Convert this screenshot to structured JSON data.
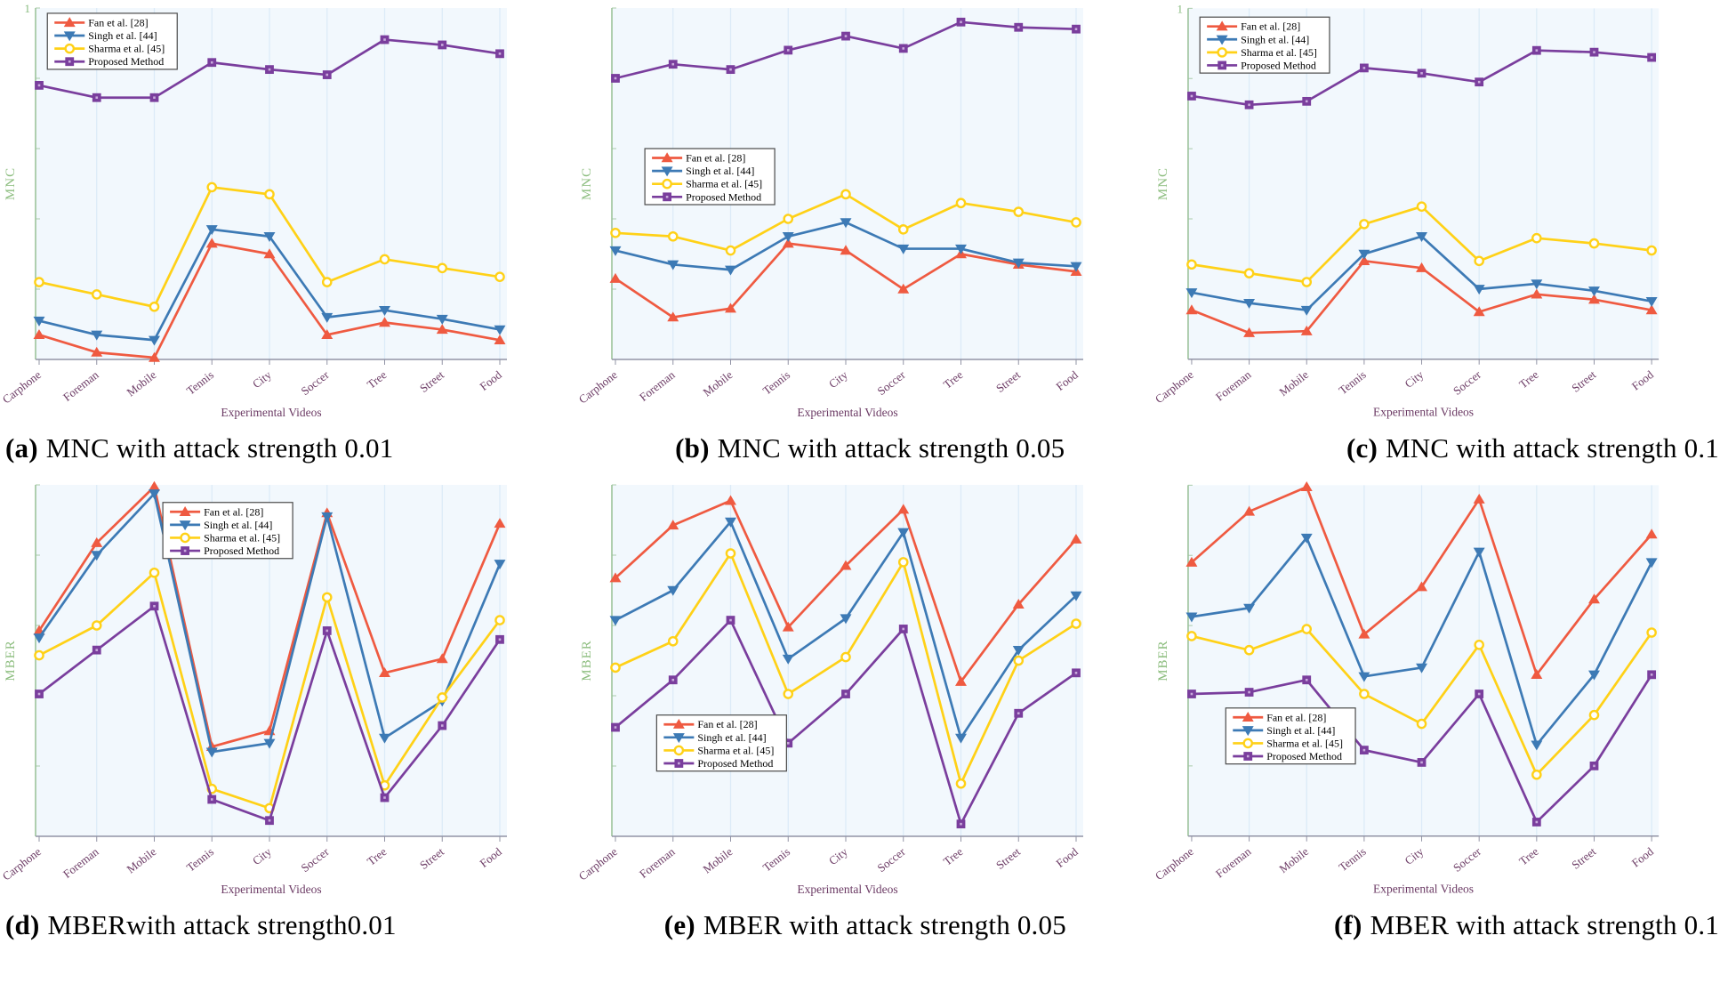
{
  "colors": {
    "fan": "#EF5A41",
    "singh": "#3D7AB5",
    "sharma": "#FFD117",
    "proposed": "#7A3E9D",
    "square_center": "#C9ABDC",
    "circle_fill": "#FCFEFF",
    "plot_bg": "#F2F8FD",
    "grid": "#DCEBF8",
    "y_axis": "#9CC39B",
    "x_axis": "#9294A6",
    "tick_label": "#6B3A64",
    "axis_label": "#8CBD7E",
    "y_tick_label": "#85B97B",
    "legend_border": "#4A4A4A",
    "legend_text": "#000000",
    "caption": "#000000"
  },
  "captions": [
    {
      "tag": "(a)",
      "text": "MNC with attack strength 0.01"
    },
    {
      "tag": "(b)",
      "text": "MNC with attack strength 0.05"
    },
    {
      "tag": "(c)",
      "text": "MNC with attack strength 0.1"
    },
    {
      "tag": "(d)",
      "text": "MBERwith attack strength0.01"
    },
    {
      "tag": "(e)",
      "text": "MBER with attack strength 0.05"
    },
    {
      "tag": "(f)",
      "text": "MBER with attack strength 0.1"
    }
  ],
  "chart_data": [
    {
      "id": "a",
      "type": "line",
      "ylabel": "MNC",
      "xlabel": "Experimental Videos",
      "categories": [
        "Carphone",
        "Foreman",
        "Mobile",
        "Tennis",
        "City",
        "Soccer",
        "Tree",
        "Street",
        "Food"
      ],
      "ylim": [
        0,
        1
      ],
      "top_tick_label": "1",
      "grid": "vertical",
      "legend_position": {
        "fx": 0.025,
        "fy": 0.015
      },
      "series": [
        {
          "name": "Fan et al. [28]",
          "color_key": "fan",
          "marker": "triangle-up",
          "values": [
            0.07,
            0.02,
            0.005,
            0.33,
            0.3,
            0.07,
            0.105,
            0.085,
            0.055
          ]
        },
        {
          "name": "Singh et al. [44]",
          "color_key": "singh",
          "marker": "triangle-down",
          "values": [
            0.11,
            0.07,
            0.055,
            0.37,
            0.35,
            0.12,
            0.14,
            0.115,
            0.085
          ]
        },
        {
          "name": "Sharma et al. [45]",
          "color_key": "sharma",
          "marker": "circle-open",
          "values": [
            0.22,
            0.185,
            0.15,
            0.49,
            0.47,
            0.22,
            0.285,
            0.26,
            0.235
          ]
        },
        {
          "name": "Proposed Method",
          "color_key": "proposed",
          "marker": "square",
          "values": [
            0.78,
            0.745,
            0.745,
            0.845,
            0.825,
            0.81,
            0.91,
            0.895,
            0.87
          ]
        }
      ]
    },
    {
      "id": "b",
      "type": "line",
      "ylabel": "MNC",
      "xlabel": "Experimental Videos",
      "categories": [
        "Carphone",
        "Foreman",
        "Mobile",
        "Tennis",
        "City",
        "Soccer",
        "Tree",
        "Street",
        "Food"
      ],
      "ylim": [
        0,
        1
      ],
      "top_tick_label": "",
      "grid": "vertical",
      "legend_position": {
        "fx": 0.07,
        "fy": 0.4
      },
      "series": [
        {
          "name": "Fan et al. [28]",
          "color_key": "fan",
          "marker": "triangle-up",
          "values": [
            0.23,
            0.12,
            0.145,
            0.33,
            0.31,
            0.2,
            0.3,
            0.27,
            0.25
          ]
        },
        {
          "name": "Singh et al. [44]",
          "color_key": "singh",
          "marker": "triangle-down",
          "values": [
            0.31,
            0.27,
            0.255,
            0.35,
            0.39,
            0.315,
            0.315,
            0.275,
            0.265
          ]
        },
        {
          "name": "Sharma et al. [45]",
          "color_key": "sharma",
          "marker": "circle-open",
          "values": [
            0.36,
            0.35,
            0.31,
            0.4,
            0.47,
            0.37,
            0.445,
            0.42,
            0.39
          ]
        },
        {
          "name": "Proposed Method",
          "color_key": "proposed",
          "marker": "square",
          "values": [
            0.8,
            0.84,
            0.825,
            0.88,
            0.92,
            0.885,
            0.96,
            0.945,
            0.94
          ]
        }
      ]
    },
    {
      "id": "c",
      "type": "line",
      "ylabel": "MNC",
      "xlabel": "Experimental Videos",
      "categories": [
        "Carphone",
        "Foreman",
        "Mobile",
        "Tennis",
        "City",
        "Soccer",
        "Tree",
        "Street",
        "Food"
      ],
      "ylim": [
        0,
        1
      ],
      "top_tick_label": "1",
      "grid": "vertical",
      "legend_position": {
        "fx": 0.025,
        "fy": 0.025
      },
      "series": [
        {
          "name": "Fan et al. [28]",
          "color_key": "fan",
          "marker": "triangle-up",
          "values": [
            0.14,
            0.075,
            0.08,
            0.28,
            0.26,
            0.135,
            0.185,
            0.17,
            0.14
          ]
        },
        {
          "name": "Singh et al. [44]",
          "color_key": "singh",
          "marker": "triangle-down",
          "values": [
            0.19,
            0.16,
            0.14,
            0.3,
            0.35,
            0.2,
            0.215,
            0.195,
            0.165
          ]
        },
        {
          "name": "Sharma et al. [45]",
          "color_key": "sharma",
          "marker": "circle-open",
          "values": [
            0.27,
            0.245,
            0.22,
            0.385,
            0.435,
            0.28,
            0.345,
            0.33,
            0.31
          ]
        },
        {
          "name": "Proposed Method",
          "color_key": "proposed",
          "marker": "square",
          "values": [
            0.75,
            0.725,
            0.735,
            0.83,
            0.815,
            0.79,
            0.88,
            0.875,
            0.86
          ]
        }
      ]
    },
    {
      "id": "d",
      "type": "line",
      "ylabel": "MBER",
      "xlabel": "Experimental Videos",
      "categories": [
        "Carphone",
        "Foreman",
        "Mobile",
        "Tennis",
        "City",
        "Soccer",
        "Tree",
        "Street",
        "Food"
      ],
      "ylim": [
        0,
        1
      ],
      "top_tick_label": "",
      "grid": "vertical",
      "legend_position": {
        "fx": 0.27,
        "fy": 0.05
      },
      "series": [
        {
          "name": "Fan et al. [28]",
          "color_key": "fan",
          "marker": "triangle-up",
          "values": [
            0.585,
            0.835,
            0.995,
            0.255,
            0.3,
            0.92,
            0.465,
            0.505,
            0.89
          ]
        },
        {
          "name": "Singh et al. [44]",
          "color_key": "singh",
          "marker": "triangle-down",
          "values": [
            0.565,
            0.8,
            0.975,
            0.24,
            0.265,
            0.91,
            0.28,
            0.385,
            0.775
          ]
        },
        {
          "name": "Sharma et al. [45]",
          "color_key": "sharma",
          "marker": "circle-open",
          "values": [
            0.515,
            0.6,
            0.75,
            0.135,
            0.08,
            0.68,
            0.145,
            0.395,
            0.615
          ]
        },
        {
          "name": "Proposed Method",
          "color_key": "proposed",
          "marker": "square",
          "values": [
            0.405,
            0.53,
            0.655,
            0.105,
            0.045,
            0.585,
            0.11,
            0.315,
            0.56
          ]
        }
      ]
    },
    {
      "id": "e",
      "type": "line",
      "ylabel": "MBER",
      "xlabel": "Experimental Videos",
      "categories": [
        "Carphone",
        "Foreman",
        "Mobile",
        "Tennis",
        "City",
        "Soccer",
        "Tree",
        "Street",
        "Food"
      ],
      "ylim": [
        0,
        1
      ],
      "top_tick_label": "",
      "grid": "vertical",
      "legend_position": {
        "fx": 0.095,
        "fy": 0.655
      },
      "series": [
        {
          "name": "Fan et al. [28]",
          "color_key": "fan",
          "marker": "triangle-up",
          "values": [
            0.735,
            0.885,
            0.955,
            0.595,
            0.77,
            0.93,
            0.44,
            0.66,
            0.845
          ]
        },
        {
          "name": "Singh et al. [44]",
          "color_key": "singh",
          "marker": "triangle-down",
          "values": [
            0.615,
            0.7,
            0.895,
            0.505,
            0.62,
            0.865,
            0.28,
            0.53,
            0.685
          ]
        },
        {
          "name": "Sharma et al. [45]",
          "color_key": "sharma",
          "marker": "circle-open",
          "values": [
            0.48,
            0.555,
            0.805,
            0.405,
            0.51,
            0.78,
            0.15,
            0.5,
            0.605
          ]
        },
        {
          "name": "Proposed Method",
          "color_key": "proposed",
          "marker": "square",
          "values": [
            0.31,
            0.445,
            0.615,
            0.265,
            0.405,
            0.59,
            0.035,
            0.35,
            0.465
          ]
        }
      ]
    },
    {
      "id": "f",
      "type": "line",
      "ylabel": "MBER",
      "xlabel": "Experimental Videos",
      "categories": [
        "Carphone",
        "Foreman",
        "Mobile",
        "Tennis",
        "City",
        "Soccer",
        "Tree",
        "Street",
        "Food"
      ],
      "ylim": [
        0,
        1
      ],
      "top_tick_label": "",
      "grid": "vertical",
      "legend_position": {
        "fx": 0.08,
        "fy": 0.635
      },
      "series": [
        {
          "name": "Fan et al. [28]",
          "color_key": "fan",
          "marker": "triangle-up",
          "values": [
            0.78,
            0.925,
            0.995,
            0.575,
            0.71,
            0.96,
            0.46,
            0.675,
            0.86
          ]
        },
        {
          "name": "Singh et al. [44]",
          "color_key": "singh",
          "marker": "triangle-down",
          "values": [
            0.625,
            0.65,
            0.85,
            0.455,
            0.48,
            0.81,
            0.26,
            0.46,
            0.78
          ]
        },
        {
          "name": "Sharma et al. [45]",
          "color_key": "sharma",
          "marker": "circle-open",
          "values": [
            0.57,
            0.53,
            0.59,
            0.405,
            0.32,
            0.545,
            0.175,
            0.345,
            0.58
          ]
        },
        {
          "name": "Proposed Method",
          "color_key": "proposed",
          "marker": "square",
          "values": [
            0.405,
            0.41,
            0.445,
            0.245,
            0.21,
            0.405,
            0.04,
            0.2,
            0.46
          ]
        }
      ]
    }
  ]
}
